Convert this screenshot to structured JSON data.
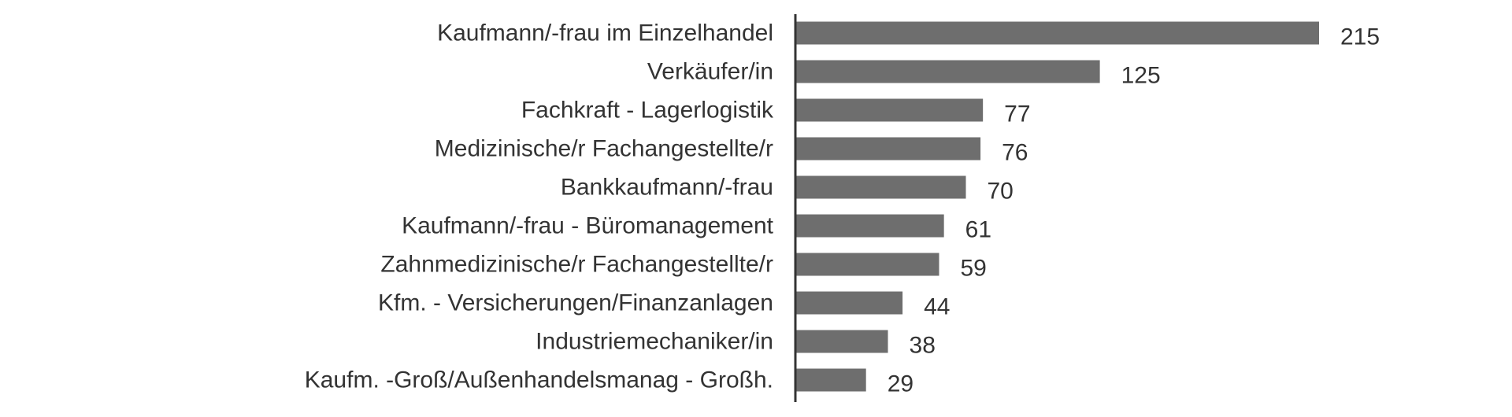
{
  "chart_data": {
    "type": "bar",
    "orientation": "horizontal",
    "title": "",
    "xlabel": "",
    "ylabel": "",
    "categories": [
      "Kaufmann/-frau im Einzelhandel",
      "Verkäufer/in",
      "Fachkraft - Lagerlogistik",
      "Medizinische/r Fachangestellte/r",
      "Bankkaufmann/-frau",
      "Kaufmann/-frau - Büromanagement",
      "Zahnmedizinische/r Fachangestellte/r",
      "Kfm. - Versicherungen/Finanzanlagen",
      "Industriemechaniker/in",
      "Kaufm. -Groß/Außenhandelsmanag - Großh."
    ],
    "values": [
      215,
      125,
      77,
      76,
      70,
      61,
      59,
      44,
      38,
      29
    ],
    "xlim": [
      0,
      215
    ],
    "grid": false,
    "legend": "none",
    "data_labels": true,
    "bar_color": "#6e6e6e",
    "axis_color": "#333333",
    "text_color": "#333333"
  }
}
